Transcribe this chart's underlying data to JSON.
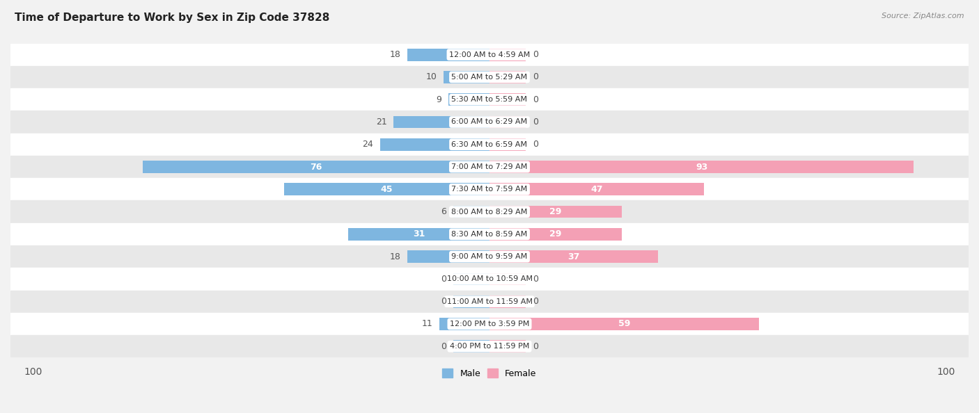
{
  "title": "Time of Departure to Work by Sex in Zip Code 37828",
  "source": "Source: ZipAtlas.com",
  "categories": [
    "12:00 AM to 4:59 AM",
    "5:00 AM to 5:29 AM",
    "5:30 AM to 5:59 AM",
    "6:00 AM to 6:29 AM",
    "6:30 AM to 6:59 AM",
    "7:00 AM to 7:29 AM",
    "7:30 AM to 7:59 AM",
    "8:00 AM to 8:29 AM",
    "8:30 AM to 8:59 AM",
    "9:00 AM to 9:59 AM",
    "10:00 AM to 10:59 AM",
    "11:00 AM to 11:59 AM",
    "12:00 PM to 3:59 PM",
    "4:00 PM to 11:59 PM"
  ],
  "male_values": [
    18,
    10,
    9,
    21,
    24,
    76,
    45,
    6,
    31,
    18,
    0,
    0,
    11,
    0
  ],
  "female_values": [
    0,
    0,
    0,
    0,
    0,
    93,
    47,
    29,
    29,
    37,
    0,
    0,
    59,
    0
  ],
  "male_color": "#7EB6E0",
  "female_color": "#F4A0B5",
  "male_color_dark": "#5B9EC9",
  "female_color_dark": "#E8728A",
  "text_dark": "#555555",
  "text_white": "#ffffff",
  "axis_limit": 100,
  "min_bar_width": 8,
  "bg_color": "#f2f2f2",
  "row_bg_white": "#ffffff",
  "row_bg_gray": "#e8e8e8",
  "title_fontsize": 11,
  "label_fontsize": 9,
  "cat_fontsize": 8,
  "legend_fontsize": 9,
  "bar_height": 0.55,
  "inside_label_threshold": 25
}
